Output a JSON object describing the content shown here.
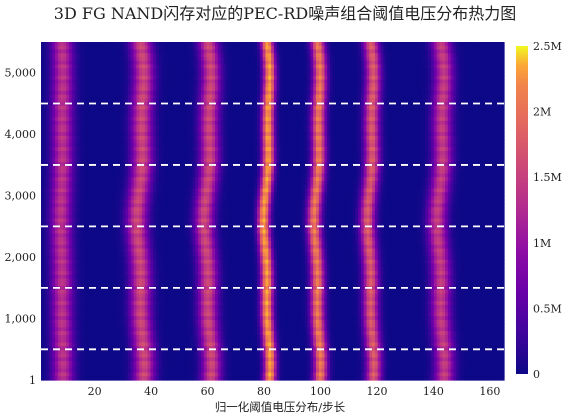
{
  "chart_data": {
    "type": "heatmap",
    "title": "3D FG NAND闪存对应的PEC-RD噪声组合阈值电压分布热力图",
    "xlabel": "归一化阈值电压分布/步长",
    "ylabel": "",
    "x_range": [
      1,
      165
    ],
    "x_ticks": [
      20,
      40,
      60,
      80,
      100,
      120,
      140,
      160
    ],
    "y_range": [
      1,
      5500
    ],
    "y_ticks": [
      1,
      1000,
      2000,
      3000,
      4000,
      5000
    ],
    "y_tick_labels": [
      "1",
      "1,000",
      "2,000",
      "3,000",
      "4,000",
      "5,000"
    ],
    "boundaries_y": [
      500,
      1500,
      2500,
      3500,
      4500
    ],
    "boundary_line": {
      "color": "#ffffff",
      "style": "dashed"
    },
    "colorscale": "plasma",
    "colorbar": {
      "min": 0,
      "max": 2500000,
      "ticks": [
        0,
        500000,
        1000000,
        1500000,
        2000000,
        2500000
      ],
      "tick_labels": [
        "0",
        "0.5M",
        "1M",
        "1.5M",
        "2M",
        "2.5M"
      ]
    },
    "peaks": [
      {
        "center": 8,
        "width": 2.6,
        "amplitude": 1300000,
        "shift": 0.25
      },
      {
        "center": 36,
        "width": 2.6,
        "amplitude": 1500000,
        "shift": 0.9
      },
      {
        "center": 60,
        "width": 2.4,
        "amplitude": 1500000,
        "shift": 0.9
      },
      {
        "center": 81,
        "width": 1.5,
        "amplitude": 2300000,
        "shift": 0.8
      },
      {
        "center": 99,
        "width": 1.7,
        "amplitude": 2000000,
        "shift": 0.8
      },
      {
        "center": 118,
        "width": 1.9,
        "amplitude": 1700000,
        "shift": 0.8
      },
      {
        "center": 143,
        "width": 2.4,
        "amplitude": 1400000,
        "shift": 0.9
      }
    ]
  }
}
